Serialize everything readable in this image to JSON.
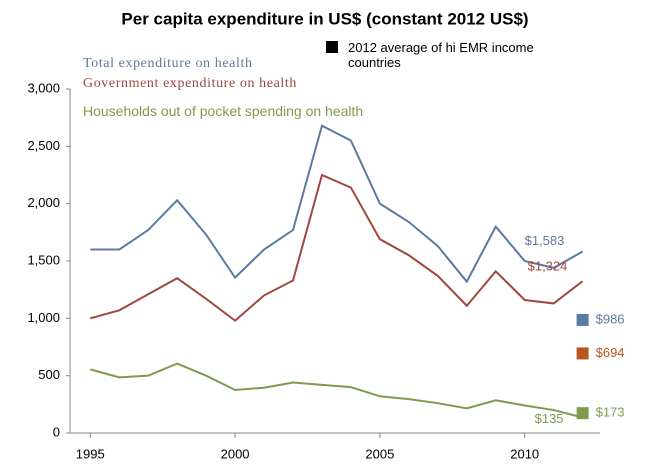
{
  "chart_data": {
    "type": "line",
    "title": "Per capita expenditure in US$ (constant 2012 US$)",
    "x": [
      1995,
      1996,
      1997,
      1998,
      1999,
      2000,
      2001,
      2002,
      2003,
      2004,
      2005,
      2006,
      2007,
      2008,
      2009,
      2010,
      2011,
      2012
    ],
    "xlim": [
      1994.3,
      2012.6
    ],
    "xticks": [
      1995,
      2000,
      2005,
      2010
    ],
    "ylim": [
      0,
      3000
    ],
    "yticks": [
      0,
      500,
      {
        "value": 1000,
        "label": "1,000"
      },
      {
        "value": 1500,
        "label": "1,500"
      },
      {
        "value": 2000,
        "label": "2,000"
      },
      {
        "value": 2500,
        "label": "2,500"
      },
      {
        "value": 3000,
        "label": "3,000"
      }
    ],
    "grid": false,
    "series": [
      {
        "name": "Total expenditure on health",
        "color": "#5b7aa1",
        "values": [
          1600,
          1600,
          1770,
          2030,
          1730,
          1355,
          1600,
          1770,
          2680,
          2550,
          2000,
          1840,
          1630,
          1320,
          1800,
          1500,
          1440,
          1583
        ],
        "value_labels": [
          null,
          null,
          null,
          null,
          null,
          null,
          null,
          null,
          null,
          null,
          null,
          null,
          null,
          null,
          null,
          null,
          null,
          "$1,583"
        ]
      },
      {
        "name": "Government expenditure on health",
        "color": "#a0473f",
        "values": [
          1000,
          1070,
          1210,
          1350,
          1170,
          980,
          1200,
          1330,
          2250,
          2140,
          1690,
          1550,
          1370,
          1110,
          1410,
          1160,
          1130,
          1324
        ],
        "value_labels": [
          null,
          null,
          null,
          null,
          null,
          null,
          null,
          null,
          null,
          null,
          null,
          null,
          null,
          null,
          null,
          null,
          null,
          "$1,324"
        ]
      },
      {
        "name": "Households out of pocket spending on health",
        "color": "#7f9a4f",
        "values": [
          555,
          485,
          500,
          605,
          500,
          375,
          395,
          440,
          420,
          400,
          320,
          295,
          260,
          215,
          285,
          240,
          200,
          135
        ],
        "value_labels": [
          null,
          null,
          null,
          null,
          null,
          null,
          null,
          null,
          null,
          null,
          null,
          null,
          null,
          null,
          null,
          null,
          null,
          "$135"
        ]
      }
    ],
    "benchmark": {
      "name": "2012 average of hi EMR income countries",
      "color": "#000000",
      "x": 2012,
      "values": [
        986,
        694,
        173
      ],
      "colors": [
        "#5b7aa1",
        "#b5561c",
        "#7f9a4f"
      ],
      "value_labels": [
        "$986",
        "$694",
        "$173"
      ]
    }
  }
}
